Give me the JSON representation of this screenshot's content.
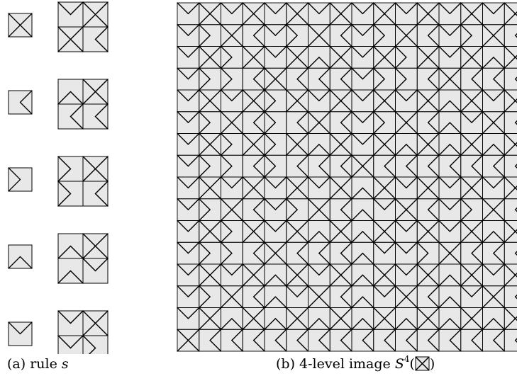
{
  "rule": {
    "tiles": [
      "X",
      "L",
      "R",
      "U",
      "D"
    ],
    "substitution": {
      "X": [
        [
          "D",
          "X"
        ],
        [
          "X",
          "L"
        ]
      ],
      "L": [
        [
          "U",
          "X"
        ],
        [
          "L",
          "L"
        ]
      ],
      "R": [
        [
          "R",
          "X"
        ],
        [
          "R",
          "L"
        ]
      ],
      "U": [
        [
          "U",
          "X"
        ],
        [
          "U",
          "D"
        ]
      ],
      "D": [
        [
          "D",
          "X"
        ],
        [
          "D",
          "R"
        ]
      ]
    },
    "colors": {
      "tile_fill": "#e8e8e8",
      "stroke": "#000000"
    }
  },
  "image": {
    "level": 4,
    "seed": "X"
  },
  "captions": {
    "a": {
      "prefix": "(a) rule ",
      "var": "s"
    },
    "b": {
      "prefix": "(b) 4-level image ",
      "var": "S",
      "sup": "4",
      "open": "(",
      "close": ")"
    }
  }
}
